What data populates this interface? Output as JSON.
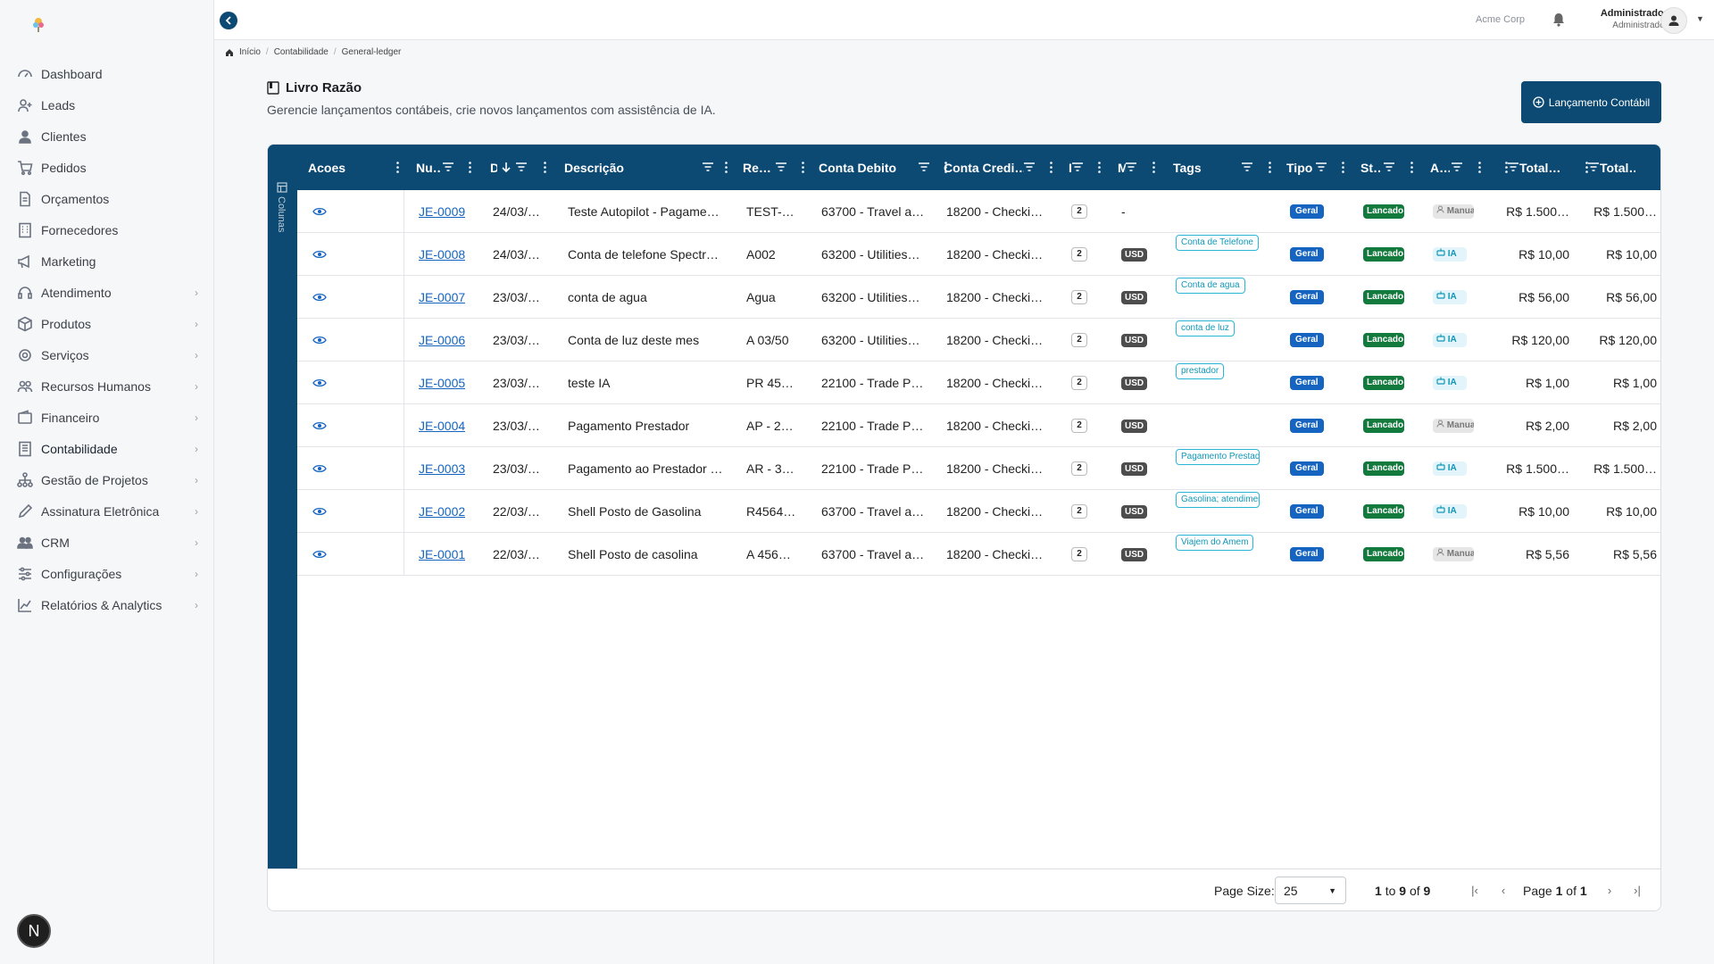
{
  "app": {
    "company": "Acme Corp"
  },
  "user": {
    "name": "Administrador",
    "role": "Administrador"
  },
  "sidebar": {
    "avatar_letter": "N",
    "items": [
      {
        "label": "Dashboard",
        "icon": "dashboard-icon",
        "has_children": false
      },
      {
        "label": "Leads",
        "icon": "user-plus-icon",
        "has_children": false
      },
      {
        "label": "Clientes",
        "icon": "user-icon",
        "has_children": false
      },
      {
        "label": "Pedidos",
        "icon": "cart-icon",
        "has_children": false
      },
      {
        "label": "Orçamentos",
        "icon": "document-icon",
        "has_children": false
      },
      {
        "label": "Fornecedores",
        "icon": "building-icon",
        "has_children": false
      },
      {
        "label": "Marketing",
        "icon": "megaphone-icon",
        "has_children": false
      },
      {
        "label": "Atendimento",
        "icon": "headset-icon",
        "has_children": true
      },
      {
        "label": "Produtos",
        "icon": "box-icon",
        "has_children": true
      },
      {
        "label": "Serviços",
        "icon": "gear-icon",
        "has_children": true
      },
      {
        "label": "Recursos Humanos",
        "icon": "users-icon",
        "has_children": true
      },
      {
        "label": "Financeiro",
        "icon": "wallet-icon",
        "has_children": true
      },
      {
        "label": "Contabilidade",
        "icon": "ledger-icon",
        "has_children": true
      },
      {
        "label": "Gestão de Projetos",
        "icon": "sitemap-icon",
        "has_children": true
      },
      {
        "label": "Assinatura Eletrônica",
        "icon": "pen-icon",
        "has_children": true
      },
      {
        "label": "CRM",
        "icon": "group-icon",
        "has_children": true
      },
      {
        "label": "Configurações",
        "icon": "sliders-icon",
        "has_children": true
      },
      {
        "label": "Relatórios & Analytics",
        "icon": "chart-line-icon",
        "has_children": true
      }
    ]
  },
  "breadcrumb": [
    "Início",
    "Contabilidade",
    "General-ledger"
  ],
  "page": {
    "title": "Livro Razão",
    "subtitle": "Gerencie lançamentos contábeis, crie novos lançamentos com assistência de IA.",
    "primary_button": "Lançamento Contábil"
  },
  "grid": {
    "side_panel_label": "Colunas",
    "columns": [
      "Acoes",
      "Nu…",
      "D",
      "Descrição",
      "Re…",
      "Conta Debito",
      "Conta Credi…",
      "I",
      "M",
      "Tags",
      "Tipo",
      "St…",
      "A…",
      "Total…",
      "Total…"
    ],
    "rows": [
      {
        "num": "JE-0009",
        "date": "24/03/…",
        "desc": "Teste Autopilot - Pagame…",
        "ref": "TEST-…",
        "debit": "63700 - Travel a…",
        "credit": "18200 - Checki…",
        "lines": "2",
        "currency": "-",
        "tag": "",
        "tipo": "Geral",
        "status": "Lancado",
        "origin": "Manual",
        "origin_type": "manual",
        "total1": "R$ 1.500…",
        "total2": "R$ 1.500…"
      },
      {
        "num": "JE-0008",
        "date": "24/03/…",
        "desc": "Conta de telefone Spectr…",
        "ref": "A002",
        "debit": "63200 - Utilities…",
        "credit": "18200 - Checki…",
        "lines": "2",
        "currency": "USD",
        "tag": "Conta de Telefone",
        "tipo": "Geral",
        "status": "Lancado",
        "origin": "IA",
        "origin_type": "ia",
        "total1": "R$ 10,00",
        "total2": "R$ 10,00"
      },
      {
        "num": "JE-0007",
        "date": "23/03/…",
        "desc": "conta de agua",
        "ref": "Agua",
        "debit": "63200 - Utilities…",
        "credit": "18200 - Checki…",
        "lines": "2",
        "currency": "USD",
        "tag": "Conta de agua",
        "tipo": "Geral",
        "status": "Lancado",
        "origin": "IA",
        "origin_type": "ia",
        "total1": "R$ 56,00",
        "total2": "R$ 56,00"
      },
      {
        "num": "JE-0006",
        "date": "23/03/…",
        "desc": "Conta de luz deste mes",
        "ref": "A 03/50",
        "debit": "63200 - Utilities…",
        "credit": "18200 - Checki…",
        "lines": "2",
        "currency": "USD",
        "tag": "conta de luz",
        "tipo": "Geral",
        "status": "Lancado",
        "origin": "IA",
        "origin_type": "ia",
        "total1": "R$ 120,00",
        "total2": "R$ 120,00"
      },
      {
        "num": "JE-0005",
        "date": "23/03/…",
        "desc": "teste IA",
        "ref": "PR 45…",
        "debit": "22100 - Trade P…",
        "credit": "18200 - Checki…",
        "lines": "2",
        "currency": "USD",
        "tag": "prestador",
        "tipo": "Geral",
        "status": "Lancado",
        "origin": "IA",
        "origin_type": "ia",
        "total1": "R$ 1,00",
        "total2": "R$ 1,00"
      },
      {
        "num": "JE-0004",
        "date": "23/03/…",
        "desc": "Pagamento Prestador",
        "ref": "AP - 2…",
        "debit": "22100 - Trade P…",
        "credit": "18200 - Checki…",
        "lines": "2",
        "currency": "USD",
        "tag": "",
        "tipo": "Geral",
        "status": "Lancado",
        "origin": "Manual",
        "origin_type": "manual",
        "total1": "R$ 2,00",
        "total2": "R$ 2,00"
      },
      {
        "num": "JE-0003",
        "date": "23/03/…",
        "desc": "Pagamento ao Prestador …",
        "ref": "AR - 3…",
        "debit": "22100 - Trade P…",
        "credit": "18200 - Checki…",
        "lines": "2",
        "currency": "USD",
        "tag": "Pagamento Prestador",
        "tipo": "Geral",
        "status": "Lancado",
        "origin": "IA",
        "origin_type": "ia",
        "total1": "R$ 1.500…",
        "total2": "R$ 1.500…"
      },
      {
        "num": "JE-0002",
        "date": "22/03/…",
        "desc": "Shell Posto de Gasolina",
        "ref": "R4564…",
        "debit": "63700 - Travel a…",
        "credit": "18200 - Checki…",
        "lines": "2",
        "currency": "USD",
        "tag": "Gasolina; atendimento",
        "tipo": "Geral",
        "status": "Lancado",
        "origin": "IA",
        "origin_type": "ia",
        "total1": "R$ 10,00",
        "total2": "R$ 10,00"
      },
      {
        "num": "JE-0001",
        "date": "22/03/…",
        "desc": "Shell Posto de casolina",
        "ref": "A 456…",
        "debit": "63700 - Travel a…",
        "credit": "18200 - Checki…",
        "lines": "2",
        "currency": "USD",
        "tag": "Viajem do Amem",
        "tipo": "Geral",
        "status": "Lancado",
        "origin": "Manual",
        "origin_type": "manual",
        "total1": "R$ 5,56",
        "total2": "R$ 5,56"
      }
    ]
  },
  "pagination": {
    "page_size_label": "Page Size:",
    "page_size": "25",
    "range_from": "1",
    "range_to": "9",
    "range_total": "9",
    "range_to_word": "to",
    "range_of_word": "of",
    "page_word": "Page",
    "current_page": "1",
    "total_pages": "1"
  },
  "colors": {
    "primary": "#0d4a73",
    "link": "#1565c0",
    "status_green": "#137a3e",
    "tag_cyan": "#29b6d6"
  }
}
